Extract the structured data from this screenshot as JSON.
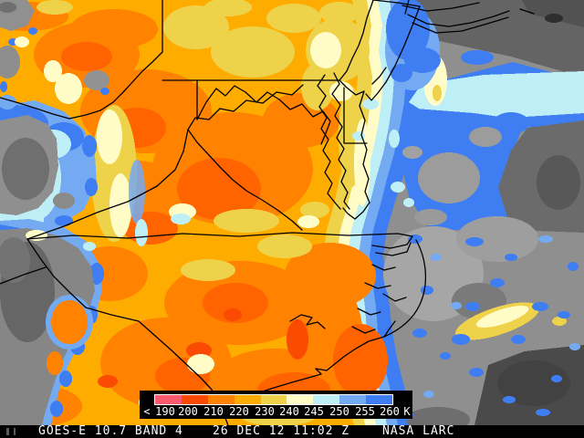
{
  "map": {
    "palette": {
      "pink": "#FA5A70",
      "red_orange": "#FB4A02",
      "orange": "#FF8200",
      "deep_orange": "#FF6400",
      "amber": "#FFAC00",
      "gold": "#EDD24A",
      "pale_yellow": "#FFFCC8",
      "cyan": "#BEEFF7",
      "light_blue": "#74AAF2",
      "blue": "#3E7EF2",
      "gray_light": "#A6A6A6",
      "gray_mid": "#8F8F8F",
      "gray_soft": "#9C9C9C",
      "gray_dark": "#6B6B6B",
      "gray_darker": "#4A4A4A",
      "gray_deep": "#565656",
      "border": "#000000"
    }
  },
  "legend": {
    "tick_labels": [
      "<",
      "190",
      "200",
      "210",
      "220",
      "230",
      "240",
      "245",
      "250",
      "255",
      "260",
      "K"
    ],
    "unit": "K",
    "segment_colors": [
      "#FA5A70",
      "#FB4A02",
      "#FF8200",
      "#FFAC00",
      "#EDD24A",
      "#FFFCC8",
      "#BEEFF7",
      "#74AAF2",
      "#3E7EF2"
    ],
    "segment_ranges": [
      "190-200",
      "200-210",
      "210-220",
      "220-230",
      "230-240",
      "240-245",
      "245-250",
      "250-255",
      "255-260"
    ]
  },
  "status_bar": {
    "left": "GOES-E 10.7 BAND 4",
    "center": "26 DEC 12 11:02 Z",
    "right": "NASA LARC"
  }
}
